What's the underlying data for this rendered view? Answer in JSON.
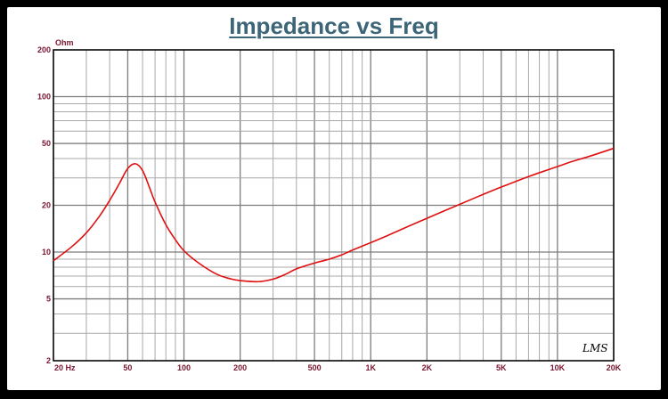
{
  "chart_data": {
    "type": "line",
    "title": "Impedance vs Freq",
    "ylabel": "Ohm",
    "xlabel": "",
    "x_scale": "log",
    "y_scale": "log",
    "xlim": [
      20,
      20000
    ],
    "ylim": [
      2,
      200
    ],
    "grid": true,
    "x_tick_labels": [
      {
        "v": 20,
        "label": "20  Hz"
      },
      {
        "v": 50,
        "label": "50"
      },
      {
        "v": 100,
        "label": "100"
      },
      {
        "v": 200,
        "label": "200"
      },
      {
        "v": 500,
        "label": "500"
      },
      {
        "v": 1000,
        "label": "1K"
      },
      {
        "v": 2000,
        "label": "2K"
      },
      {
        "v": 5000,
        "label": "5K"
      },
      {
        "v": 10000,
        "label": "10K"
      },
      {
        "v": 20000,
        "label": "20K"
      }
    ],
    "y_tick_labels": [
      {
        "v": 2,
        "label": "2"
      },
      {
        "v": 5,
        "label": "5"
      },
      {
        "v": 10,
        "label": "10"
      },
      {
        "v": 20,
        "label": "20"
      },
      {
        "v": 50,
        "label": "50"
      },
      {
        "v": 100,
        "label": "100"
      },
      {
        "v": 200,
        "label": "200"
      }
    ],
    "series": [
      {
        "color": "#e01010",
        "x": [
          20,
          25,
          30,
          35,
          40,
          45,
          50,
          55,
          60,
          65,
          70,
          80,
          90,
          100,
          120,
          150,
          180,
          200,
          250,
          300,
          350,
          400,
          500,
          600,
          700,
          800,
          1000,
          1200,
          1500,
          2000,
          2500,
          3000,
          4000,
          5000,
          6000,
          7000,
          8000,
          10000,
          12000,
          15000,
          20000
        ],
        "y": [
          8.8,
          10.8,
          13.3,
          16.8,
          21.5,
          27.5,
          34.5,
          37.0,
          33.5,
          26.5,
          21.0,
          15.0,
          12.0,
          10.2,
          8.5,
          7.2,
          6.7,
          6.55,
          6.45,
          6.7,
          7.2,
          7.8,
          8.5,
          9.0,
          9.6,
          10.3,
          11.5,
          12.6,
          14.2,
          16.5,
          18.5,
          20.3,
          23.5,
          26.2,
          28.5,
          30.6,
          32.4,
          35.5,
          38.3,
          41.5,
          46.5
        ]
      }
    ],
    "watermark": "LMS"
  }
}
